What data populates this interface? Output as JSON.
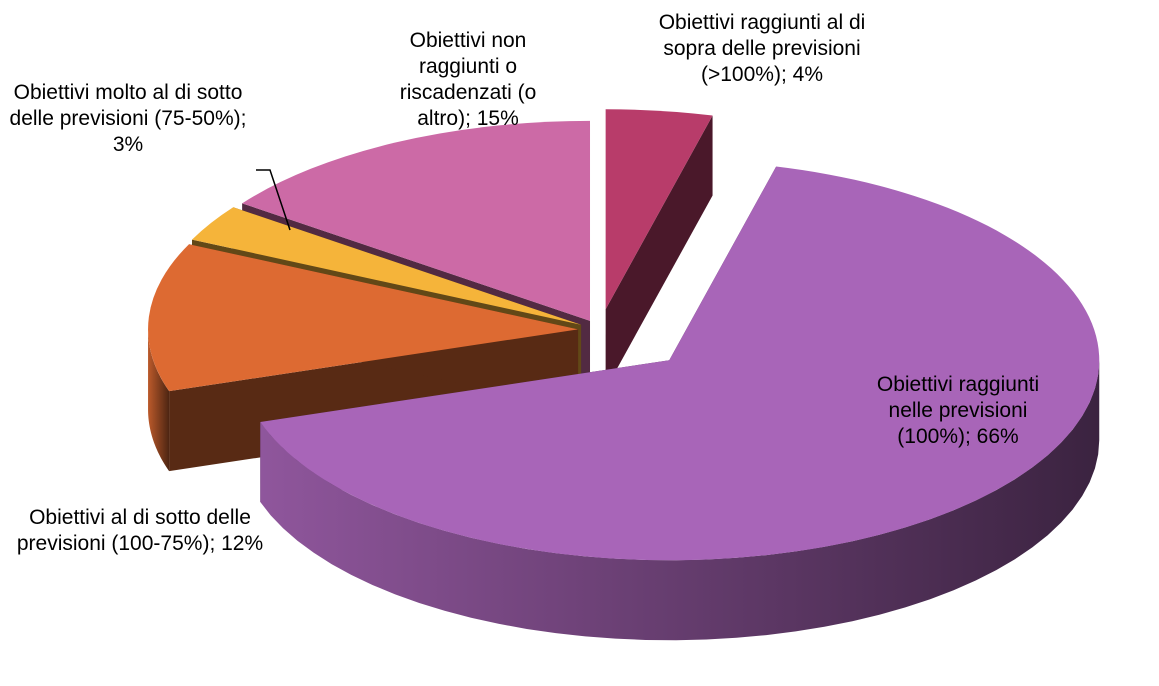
{
  "chart_data": {
    "type": "pie",
    "style": "3d-exploded",
    "categories": [
      "Obiettivi raggiunti al di sopra delle previsioni (>100%)",
      "Obiettivi raggiunti nelle previsioni (100%)",
      "Obiettivi al di sotto delle previsioni (100-75%)",
      "Obiettivi molto al di sotto delle previsioni (75-50%)",
      "Obiettivi non raggiunti o riscadenzati (o altro)"
    ],
    "values": [
      4,
      66,
      12,
      3,
      15
    ],
    "value_labels": [
      "4%",
      "66%",
      "12%",
      "3%",
      "15%"
    ],
    "label_separator": "; ",
    "colors": [
      "#b83c6a",
      "#a865b8",
      "#dd6a32",
      "#f5b43a",
      "#cc6aa6"
    ]
  }
}
